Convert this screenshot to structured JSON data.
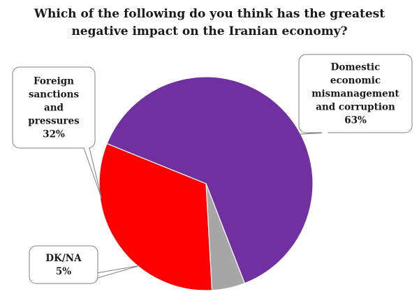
{
  "chart_data": {
    "type": "pie",
    "title": "Which of the following do you think has the greatest negative impact on the Iranian economy?",
    "title_lines": [
      "Which of the following do you think has the greatest",
      "negative impact on the Iranian economy?"
    ],
    "slices": [
      {
        "label_lines": [
          "Domestic",
          "economic",
          "mismanagement",
          "and corruption"
        ],
        "value": 63,
        "value_label": "63%",
        "color": "#7030a0"
      },
      {
        "label_lines": [
          "DK/NA"
        ],
        "value": 5,
        "value_label": "5%",
        "color": "#a6a6a6"
      },
      {
        "label_lines": [
          "Foreign",
          "sanctions",
          "and",
          "pressures"
        ],
        "value": 32,
        "value_label": "32%",
        "color": "#ff0000"
      }
    ]
  }
}
